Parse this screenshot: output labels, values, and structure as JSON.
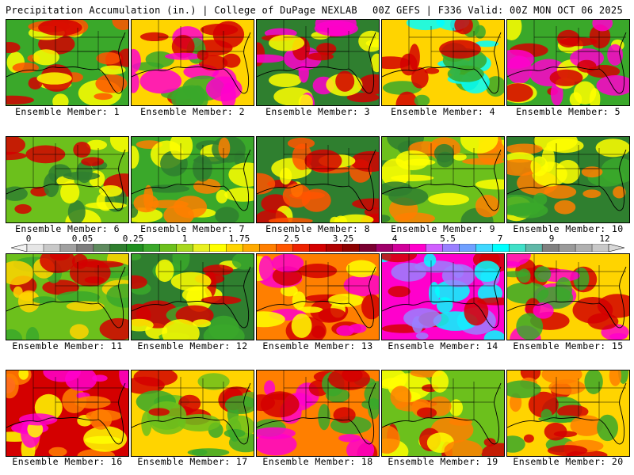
{
  "header": {
    "left_title": "Precipitation Accumulation (in.) | College of DuPage NEXLAB",
    "right_title": "00Z GEFS | F336 Valid: 00Z MON OCT 06 2025"
  },
  "colorbar": {
    "labels": [
      "0",
      "0.05",
      "0.25",
      "1",
      "1.75",
      "2.5",
      "3.25",
      "4",
      "5.5",
      "7",
      "9",
      "12"
    ],
    "colors": [
      "#e6e6e6",
      "#c8c8c8",
      "#a0a0a0",
      "#7d7d7d",
      "#5e8a5e",
      "#2f7f2f",
      "#1f8f1f",
      "#3aa82a",
      "#6cc01c",
      "#a8d81e",
      "#e8f020",
      "#ffff00",
      "#ffd400",
      "#ffaa00",
      "#ff7f00",
      "#ff5500",
      "#ee2200",
      "#d40000",
      "#b00000",
      "#8c0000",
      "#7a0030",
      "#a0006a",
      "#d0009a",
      "#ff00cc",
      "#d060ff",
      "#9a80ff",
      "#70a0ff",
      "#40d8ff",
      "#00ffff",
      "#40e0c8",
      "#60b8a8",
      "#808080",
      "#9a9a9a",
      "#b0b0b0",
      "#c8c8c8"
    ]
  },
  "members": [
    {
      "label": "Ensemble Member: 1",
      "dominant": "#3aa82a",
      "accents": [
        "#ffff00",
        "#ff5500",
        "#d40000"
      ]
    },
    {
      "label": "Ensemble Member: 2",
      "dominant": "#ffd400",
      "accents": [
        "#d40000",
        "#ff00cc",
        "#3aa82a"
      ]
    },
    {
      "label": "Ensemble Member: 3",
      "dominant": "#2f7f2f",
      "accents": [
        "#ffff00",
        "#d40000",
        "#ff00cc"
      ]
    },
    {
      "label": "Ensemble Member: 4",
      "dominant": "#ffd400",
      "accents": [
        "#d40000",
        "#3aa82a",
        "#00ffff"
      ]
    },
    {
      "label": "Ensemble Member: 5",
      "dominant": "#3aa82a",
      "accents": [
        "#ffff00",
        "#d40000",
        "#ff00cc"
      ]
    },
    {
      "label": "Ensemble Member: 6",
      "dominant": "#6cc01c",
      "accents": [
        "#ffff00",
        "#2f7f2f",
        "#d40000"
      ]
    },
    {
      "label": "Ensemble Member: 7",
      "dominant": "#3aa82a",
      "accents": [
        "#ffff00",
        "#2f7f2f",
        "#ff7f00"
      ]
    },
    {
      "label": "Ensemble Member: 8",
      "dominant": "#2f7f2f",
      "accents": [
        "#ff5500",
        "#d40000",
        "#ffff00"
      ]
    },
    {
      "label": "Ensemble Member: 9",
      "dominant": "#6cc01c",
      "accents": [
        "#ffff00",
        "#2f7f2f",
        "#ff7f00"
      ]
    },
    {
      "label": "Ensemble Member: 10",
      "dominant": "#2f7f2f",
      "accents": [
        "#3aa82a",
        "#ffff00",
        "#ff7f00"
      ]
    },
    {
      "label": "Ensemble Member: 11",
      "dominant": "#6cc01c",
      "accents": [
        "#ffd400",
        "#d40000",
        "#3aa82a"
      ]
    },
    {
      "label": "Ensemble Member: 12",
      "dominant": "#2f7f2f",
      "accents": [
        "#3aa82a",
        "#ffff00",
        "#d40000"
      ]
    },
    {
      "label": "Ensemble Member: 13",
      "dominant": "#ff7f00",
      "accents": [
        "#d40000",
        "#ffff00",
        "#ff00cc"
      ]
    },
    {
      "label": "Ensemble Member: 14",
      "dominant": "#ff00cc",
      "accents": [
        "#00ffff",
        "#9a80ff",
        "#d40000"
      ]
    },
    {
      "label": "Ensemble Member: 15",
      "dominant": "#ffd400",
      "accents": [
        "#d40000",
        "#ff00cc",
        "#3aa82a"
      ]
    },
    {
      "label": "Ensemble Member: 16",
      "dominant": "#d40000",
      "accents": [
        "#ff7f00",
        "#ff00cc",
        "#ffff00"
      ]
    },
    {
      "label": "Ensemble Member: 17",
      "dominant": "#ffd400",
      "accents": [
        "#3aa82a",
        "#d40000",
        "#6cc01c"
      ]
    },
    {
      "label": "Ensemble Member: 18",
      "dominant": "#ff7f00",
      "accents": [
        "#3aa82a",
        "#d40000",
        "#ff00cc"
      ]
    },
    {
      "label": "Ensemble Member: 19",
      "dominant": "#6cc01c",
      "accents": [
        "#ffff00",
        "#ff7f00",
        "#d40000"
      ]
    },
    {
      "label": "Ensemble Member: 20",
      "dominant": "#ffd400",
      "accents": [
        "#d40000",
        "#3aa82a",
        "#ff7f00"
      ]
    }
  ]
}
